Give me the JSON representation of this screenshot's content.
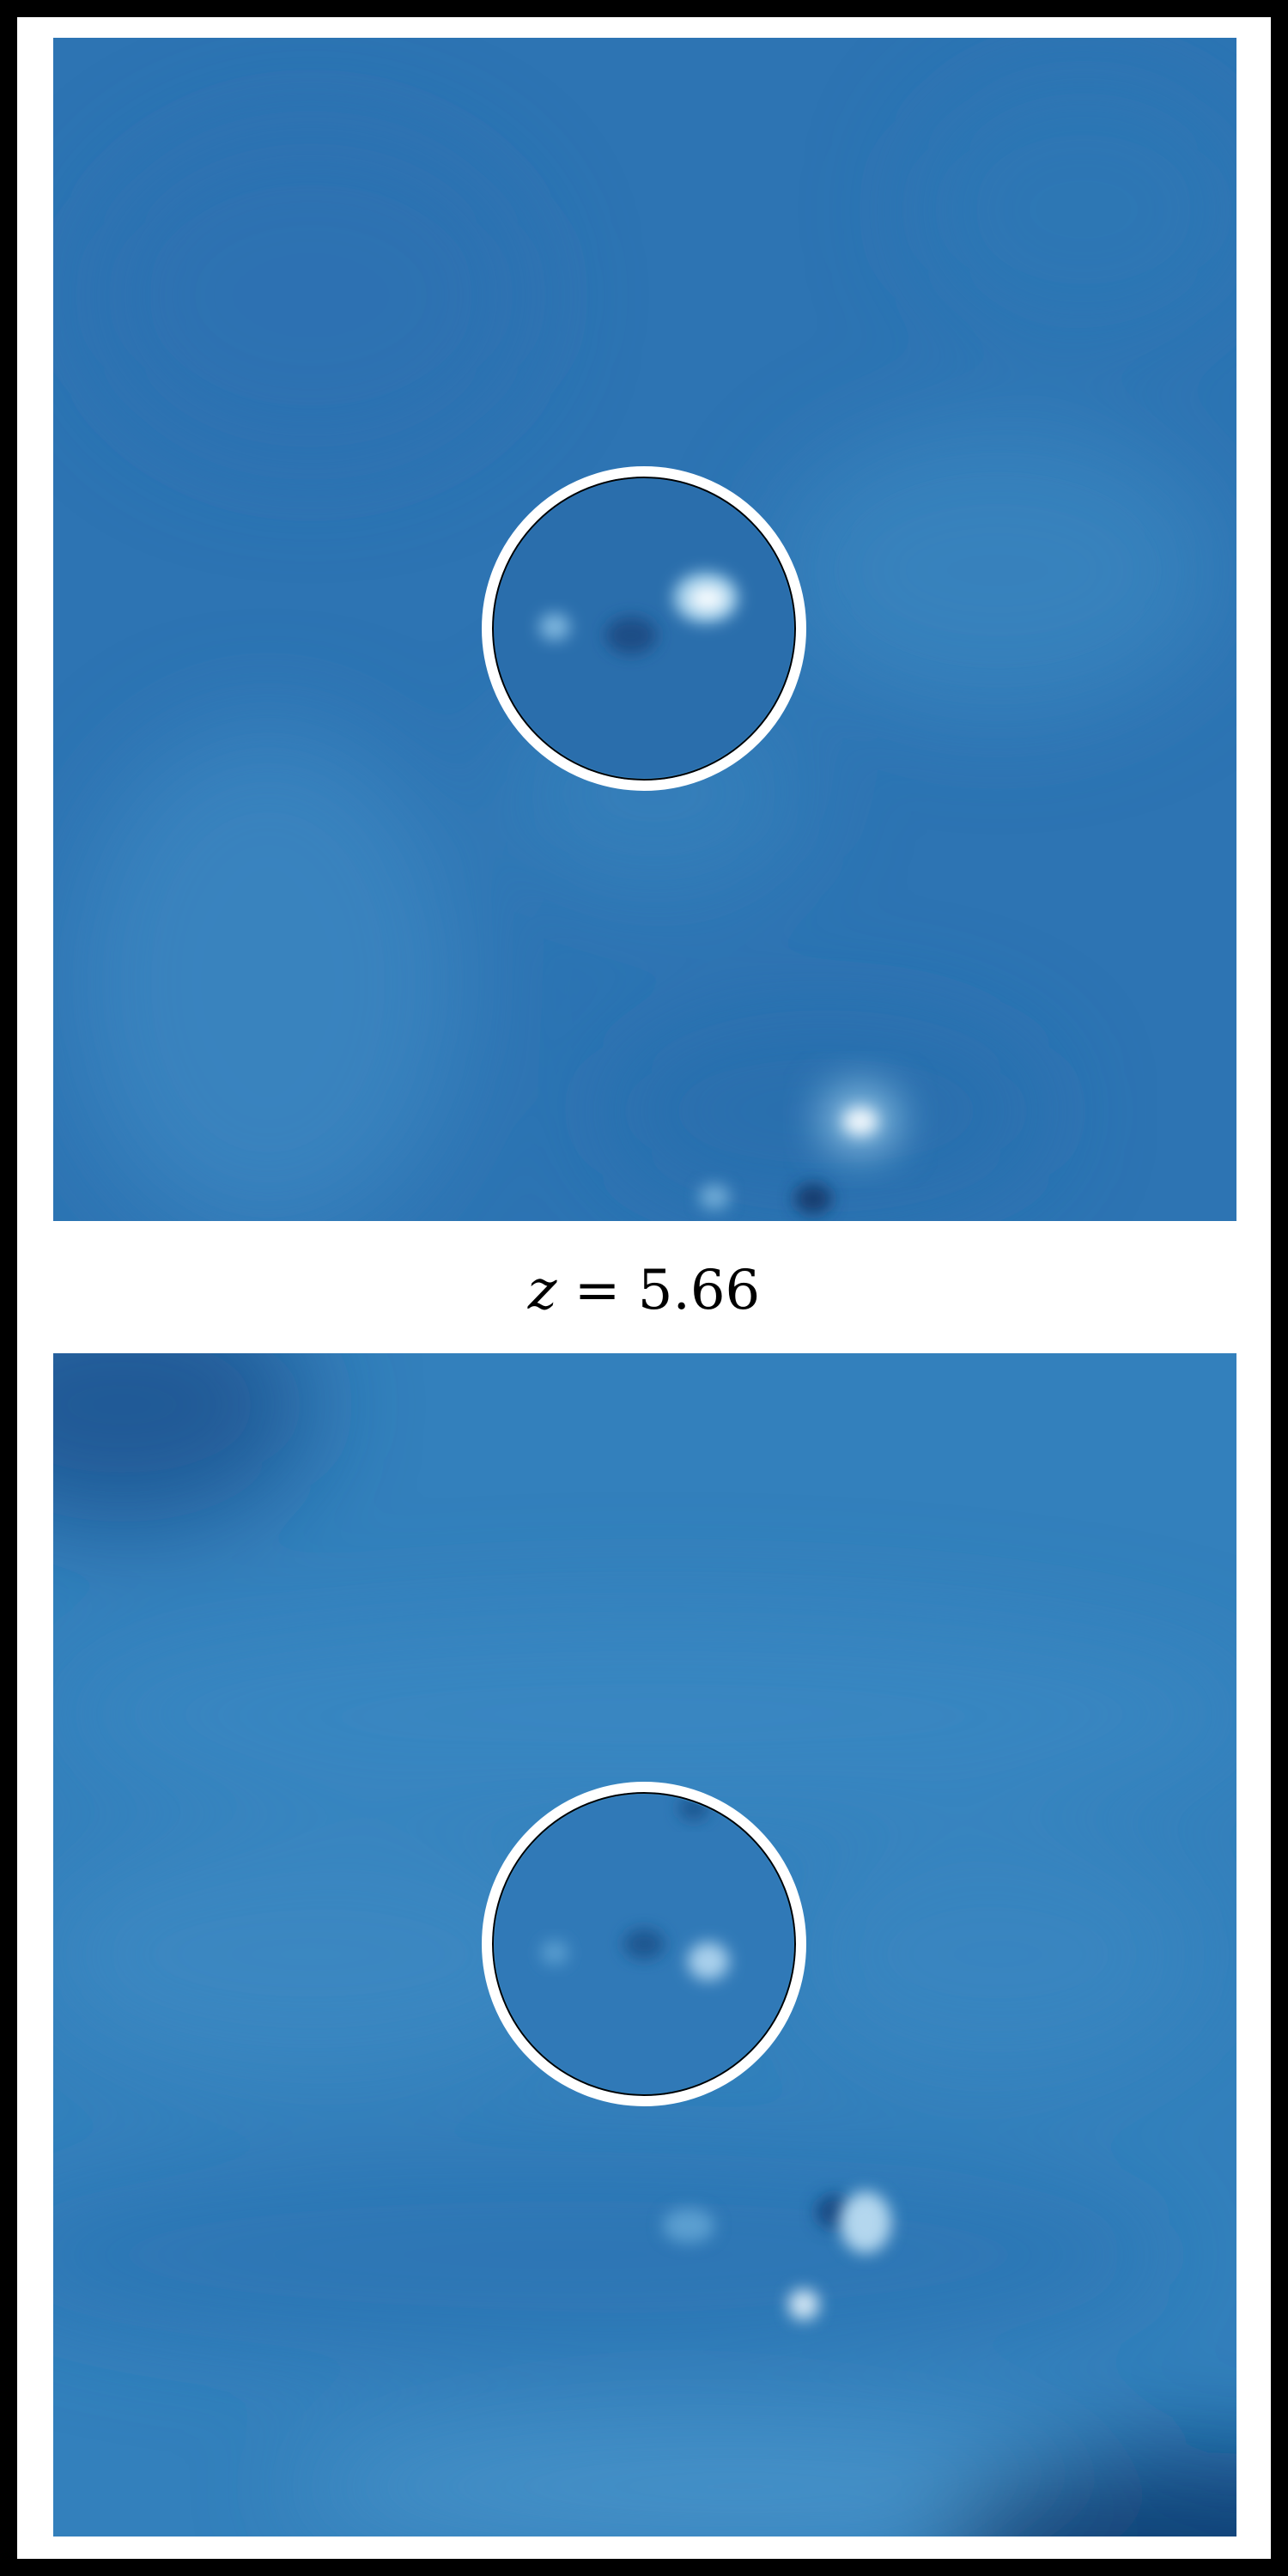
{
  "figure": {
    "label_variable": "z",
    "label_operator": "=",
    "label_value": "5.66"
  },
  "colors": {
    "frame": "#000000",
    "background": "#ffffff",
    "map_base": "#2d75b4",
    "map_light": "#4a96cc",
    "map_dark": "#174f8a",
    "bright_source": "#eef6fb",
    "aperture_ring": "#ffffff"
  },
  "panels": [
    {
      "name": "top-panel",
      "marker": "aperture-circle"
    },
    {
      "name": "bottom-panel",
      "marker": "aperture-circle"
    }
  ]
}
